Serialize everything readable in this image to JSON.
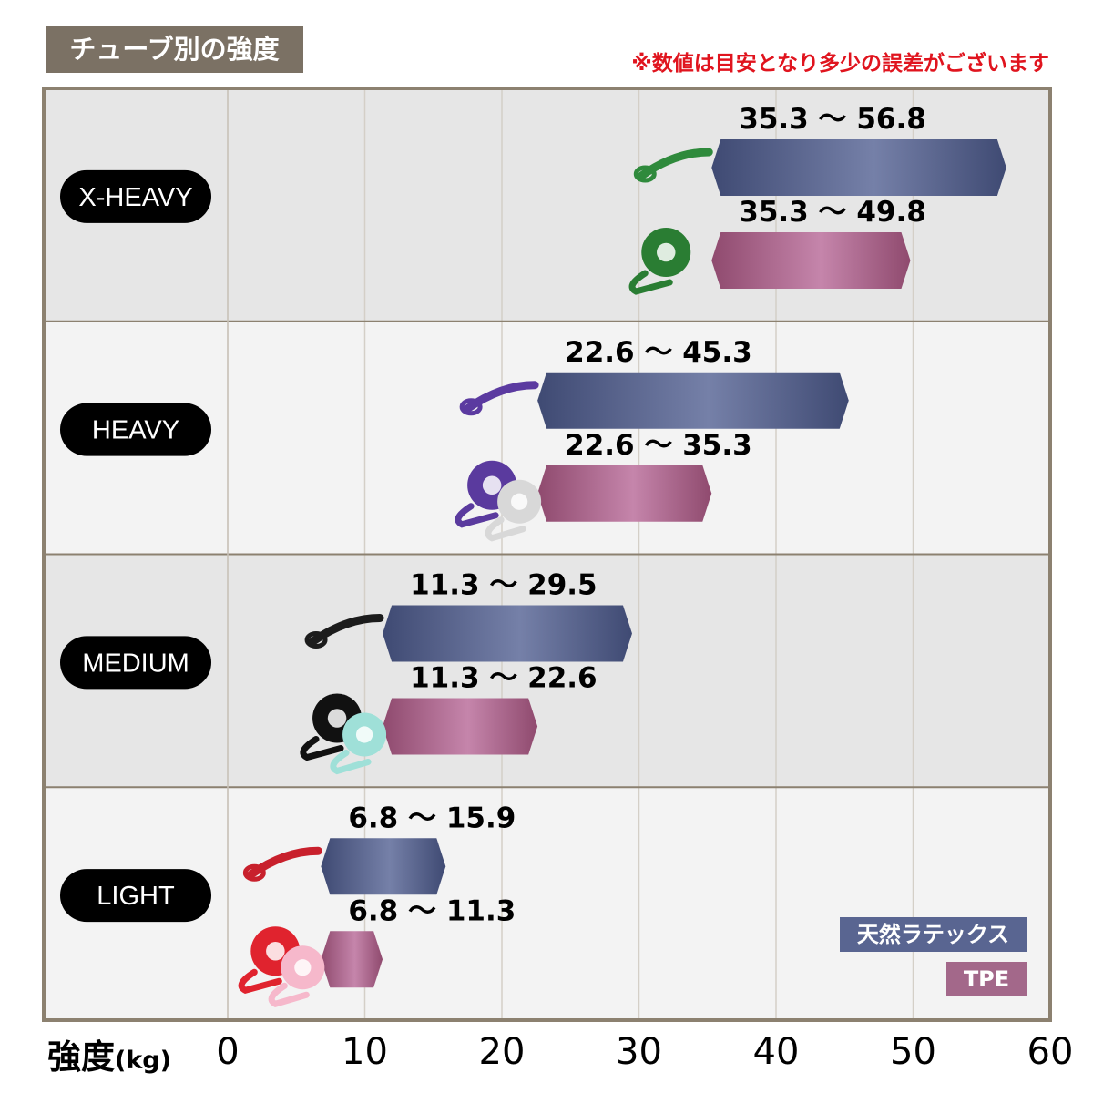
{
  "header": {
    "title": "チューブ別の強度",
    "note": "※数値は目安となり多少の誤差がございます"
  },
  "axis": {
    "title": "強度",
    "unit": "(kg)",
    "ticks": [
      "0",
      "10",
      "20",
      "30",
      "40",
      "50",
      "60"
    ]
  },
  "legend": {
    "latex": "天然ラテックス",
    "tpe": "TPE"
  },
  "colors": {
    "latex": "#5f6c9a",
    "tpe": "#b3739a",
    "header_bg": "#7b7164",
    "note": "#e0141e",
    "border": "#8c8170",
    "band_even": "#e6e6e6",
    "band_odd": "#f3f3f3"
  },
  "chart_data": {
    "type": "bar",
    "orientation": "horizontal-range",
    "categories": [
      "X-HEAVY",
      "HEAVY",
      "MEDIUM",
      "LIGHT"
    ],
    "xlim": [
      0,
      60
    ],
    "xticks": [
      0,
      10,
      20,
      30,
      40,
      50,
      60
    ],
    "xlabel": "強度(kg)",
    "grid": true,
    "legend_position": "bottom-right",
    "series": [
      {
        "name": "天然ラテックス",
        "ranges": [
          [
            35.3,
            56.8
          ],
          [
            22.6,
            45.3
          ],
          [
            11.3,
            29.5
          ],
          [
            6.8,
            15.9
          ]
        ],
        "labels": [
          "35.3 ～ 56.8",
          "22.6 ～ 45.3",
          "11.3 ～ 29.5",
          "6.8 ～ 15.9"
        ]
      },
      {
        "name": "TPE",
        "ranges": [
          [
            35.3,
            49.8
          ],
          [
            22.6,
            35.3
          ],
          [
            11.3,
            22.6
          ],
          [
            6.8,
            11.3
          ]
        ],
        "labels": [
          "35.3 ～ 49.8",
          "22.6 ～ 35.3",
          "11.3 ～ 22.6",
          "6.8 ～ 11.3"
        ]
      }
    ],
    "band_icons": [
      [
        "green-loop-band",
        "green-wide-band"
      ],
      [
        "purple-loop-band",
        "purple-and-gray-bands"
      ],
      [
        "black-loop-band",
        "black-and-teal-bands"
      ],
      [
        "red-loop-band",
        "red-and-pink-bands"
      ]
    ]
  }
}
